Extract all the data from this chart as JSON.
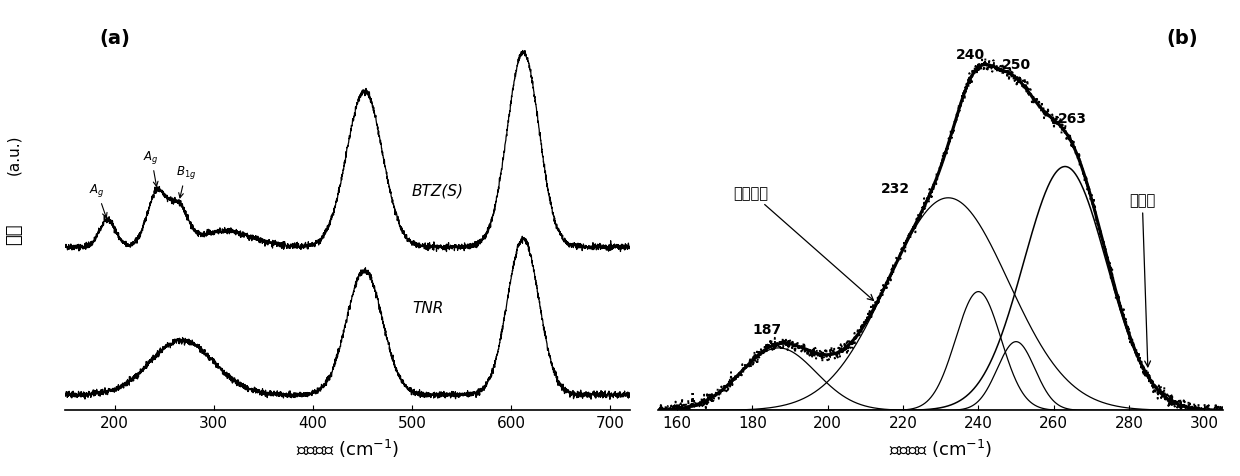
{
  "panel_a": {
    "xlabel": "拉曼位移 (cm-1)",
    "ylabel": "强度 (a.u.)",
    "ylabel_line1": "强度",
    "ylabel_line2": "(a.u.)",
    "label_a": "(a)",
    "xlim": [
      150,
      720
    ],
    "BTZ_label": "BTZ(S)",
    "TNR_label": "TNR"
  },
  "panel_b": {
    "xlabel": "拉曼位移 (cm-1)",
    "label_b": "(b)",
    "xlim": [
      155,
      305
    ],
    "annotation_fit": "全谱拟合",
    "annotation_meas": "测量值"
  }
}
